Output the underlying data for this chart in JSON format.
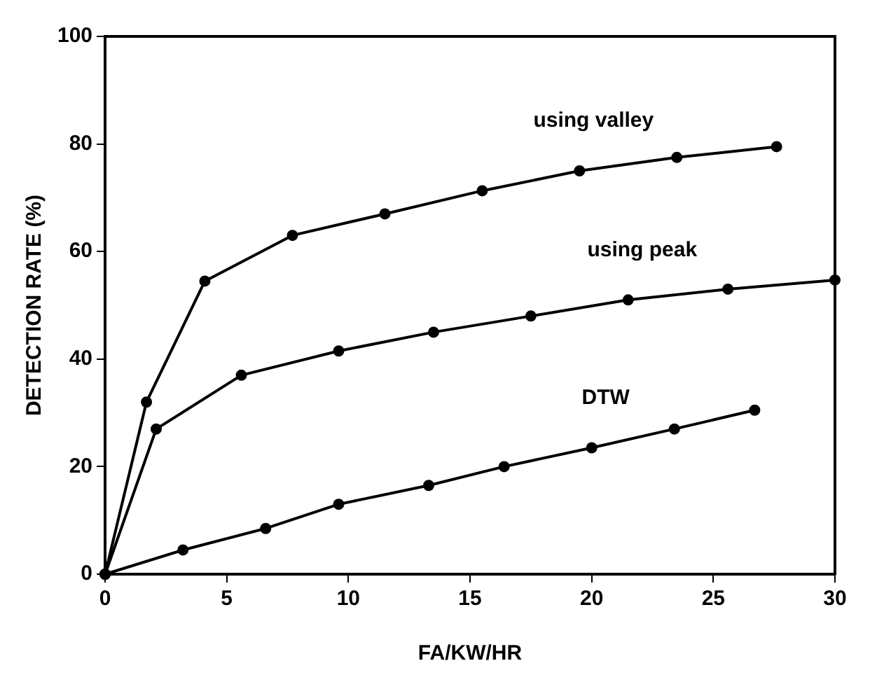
{
  "chart_data": {
    "type": "line",
    "xlabel": "FA/KW/HR",
    "ylabel": "DETECTION RATE (%)",
    "xlim": [
      0,
      30
    ],
    "ylim": [
      0,
      100
    ],
    "xticks": [
      0,
      5,
      10,
      15,
      20,
      25,
      30
    ],
    "yticks": [
      0,
      20,
      40,
      60,
      80,
      100
    ],
    "grid": false,
    "legend": false,
    "marker": "circle",
    "line_style": "solid",
    "series": [
      {
        "name": "using valley",
        "color": "#000000",
        "x": [
          0,
          1.7,
          4.1,
          7.7,
          11.5,
          15.5,
          19.5,
          23.5,
          27.6
        ],
        "values": [
          0,
          32,
          54.5,
          63,
          67,
          71.3,
          75,
          77.5,
          79.5
        ]
      },
      {
        "name": "using peak",
        "color": "#000000",
        "x": [
          0,
          2.1,
          5.6,
          9.6,
          13.5,
          17.5,
          21.5,
          25.6,
          30
        ],
        "values": [
          0,
          27,
          37,
          41.5,
          45,
          48,
          51,
          53,
          54.7
        ]
      },
      {
        "name": "DTW",
        "color": "#000000",
        "x": [
          0,
          3.2,
          6.6,
          9.6,
          13.3,
          16.4,
          20,
          23.4,
          26.7
        ],
        "values": [
          0,
          4.5,
          8.5,
          13,
          16.5,
          20,
          23.5,
          27,
          30.5
        ]
      }
    ]
  }
}
